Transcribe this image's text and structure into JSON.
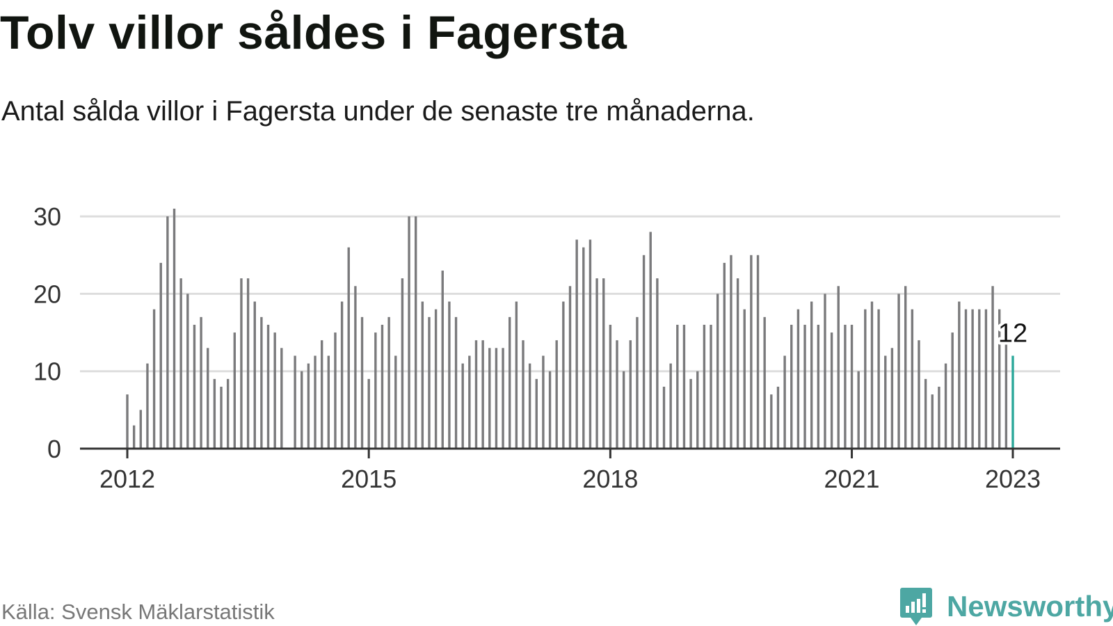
{
  "chart_data": {
    "type": "bar",
    "title": "Tolv villor såldes i Fagersta",
    "subtitle": "Antal sålda villor i Fagersta under de senaste tre månaderna.",
    "source": "Källa: Svensk Mäklarstatistik",
    "brand": "Newsworthy",
    "xlabel": "",
    "ylabel": "",
    "ylim": [
      0,
      31
    ],
    "yticks": [
      0,
      10,
      20,
      30
    ],
    "xticks": [
      {
        "label": "2012",
        "at": "2012-01"
      },
      {
        "label": "2015",
        "at": "2015-01"
      },
      {
        "label": "2018",
        "at": "2018-01"
      },
      {
        "label": "2021",
        "at": "2021-01"
      },
      {
        "label": "2023",
        "at": "2023-01"
      }
    ],
    "x_start": "2012-01",
    "x_end": "2023-01",
    "grid": true,
    "legend": "none",
    "colors": {
      "bars": "#7a7a7c",
      "highlight": "#2aa79a",
      "grid": "#dddddd",
      "axis": "#333333"
    },
    "highlight": {
      "x": "2023-01",
      "value": 12,
      "label": "12"
    },
    "values": [
      7,
      3,
      5,
      11,
      18,
      24,
      30,
      31,
      22,
      20,
      16,
      17,
      13,
      9,
      8,
      9,
      15,
      22,
      22,
      19,
      17,
      16,
      15,
      13,
      null,
      12,
      10,
      11,
      12,
      14,
      12,
      15,
      19,
      26,
      21,
      17,
      9,
      15,
      16,
      17,
      12,
      22,
      30,
      30,
      19,
      17,
      18,
      23,
      19,
      17,
      11,
      12,
      14,
      14,
      13,
      13,
      13,
      17,
      19,
      14,
      11,
      9,
      12,
      10,
      14,
      19,
      21,
      27,
      26,
      27,
      22,
      22,
      16,
      14,
      10,
      14,
      17,
      25,
      28,
      22,
      8,
      11,
      16,
      16,
      9,
      10,
      16,
      16,
      20,
      24,
      25,
      22,
      18,
      25,
      25,
      17,
      7,
      8,
      12,
      16,
      18,
      16,
      19,
      16,
      20,
      15,
      21,
      16,
      16,
      10,
      18,
      19,
      18,
      12,
      13,
      20,
      21,
      18,
      14,
      9,
      7,
      8,
      11,
      15,
      19,
      18,
      18,
      18,
      18,
      21,
      18,
      15,
      12
    ]
  }
}
